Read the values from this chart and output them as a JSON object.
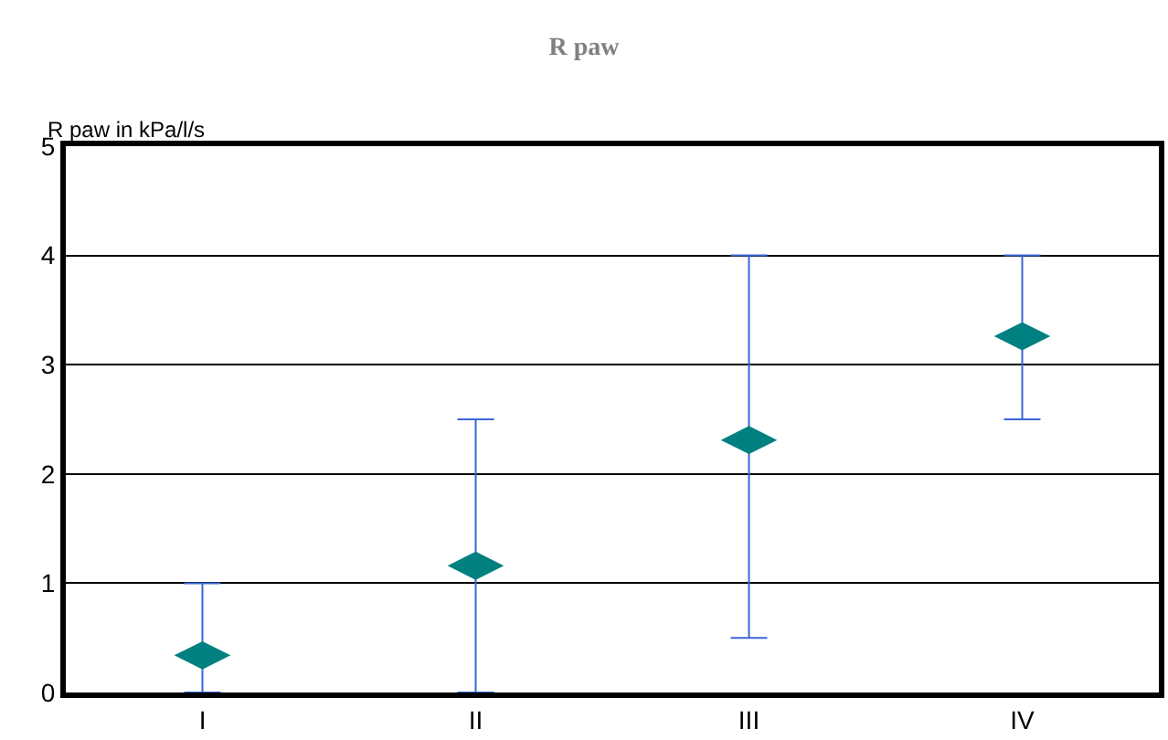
{
  "chart_data": {
    "type": "scatter",
    "title": "R paw",
    "ylabel": "R paw in kPa/l/s",
    "categories": [
      "I",
      "II",
      "III",
      "IV"
    ],
    "series": [
      {
        "color": "#008080",
        "values": [
          0.34,
          1.16,
          2.31,
          3.26
        ],
        "errors": [
          [
            0,
            1
          ],
          [
            0,
            2.5
          ],
          [
            0.5,
            4
          ],
          [
            2.5,
            4
          ]
        ]
      }
    ],
    "ylim": [
      0,
      5
    ],
    "yticks": [
      0,
      1,
      2,
      3,
      4,
      5
    ],
    "grid": "y"
  }
}
